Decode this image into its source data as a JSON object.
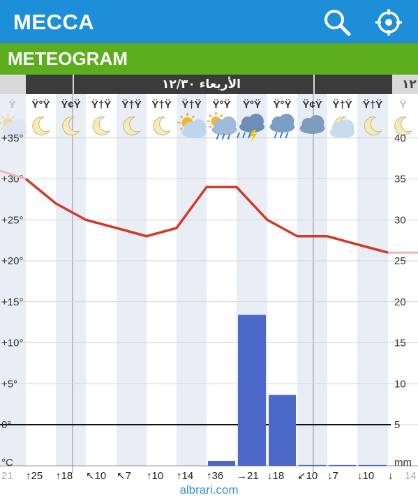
{
  "header": {
    "city": "MECCA",
    "search_icon": "search-icon",
    "locate_icon": "crosshair-locate-icon",
    "bar_color": "#1c8fd8"
  },
  "subheader": {
    "title": "METEOGRAM",
    "bar_color": "#5cae1e"
  },
  "datebar": {
    "date_label": "الأربعاء ١٢/٣٠",
    "right_label": "١٢"
  },
  "hour_labels": [
    "Ÿ",
    "Ÿ°Ÿ",
    "Ÿ¢Ÿ",
    "Ÿ†Ÿ",
    "Ÿ†Ÿ",
    "Ÿ†Ÿ",
    "Ÿ†Ÿ",
    "Ÿ°Ÿ",
    "Ÿ°Ÿ",
    "Ÿ°Ÿ",
    "Ÿ¢Ÿ",
    "Ÿ†Ÿ",
    "Ÿ†Ÿ",
    "Ÿ"
  ],
  "weather_icons": [
    "partly-cloudy-icon",
    "moon-icon",
    "moon-icon",
    "moon-icon",
    "moon-icon",
    "moon-icon",
    "sun-cloud-icon",
    "sun-cloud-rain-icon",
    "thunderstorm-icon",
    "rain-cloud-icon",
    "cloud-icon",
    "moon-cloud-icon",
    "moon-icon",
    "moon-icon"
  ],
  "wind": [
    "21",
    "↑25",
    "↑18",
    "↖10",
    "↖7",
    "↑10",
    "↑14",
    "↑36",
    "→21",
    "↓18",
    "↙10",
    "↓7",
    "↓10",
    "↓",
    "14"
  ],
  "footer": {
    "watermark": "albrari.com"
  },
  "chart_data": {
    "type": "line",
    "temp_axis": {
      "ticks": [
        "+35°",
        "+30°",
        "+25°",
        "+20°",
        "+15°",
        "+10°",
        "+5°",
        "0°",
        "°C"
      ],
      "range": [
        -5,
        35
      ]
    },
    "precip_axis": {
      "ticks": [
        "40",
        "35",
        "30",
        "25",
        "20",
        "15",
        "10",
        "5",
        "mm"
      ],
      "range": [
        0,
        40
      ]
    },
    "x": [
      0,
      1,
      2,
      3,
      4,
      5,
      6,
      7,
      8,
      9,
      10,
      11,
      12,
      13,
      14
    ],
    "series": [
      {
        "name": "",
        "kind": "line",
        "color": "#d23a28",
        "values": [
          31,
          30,
          27,
          25,
          24,
          23,
          24,
          29,
          29,
          25,
          23,
          23,
          22,
          21,
          21
        ]
      },
      {
        "name": "",
        "kind": "bar",
        "color": "#4c68c8",
        "values": [
          0,
          0,
          0,
          0,
          0,
          0,
          0,
          0.6,
          18.5,
          8.7,
          0.1,
          0.1,
          0.1,
          0,
          0
        ]
      }
    ],
    "zero_line": 0,
    "grid": true
  }
}
